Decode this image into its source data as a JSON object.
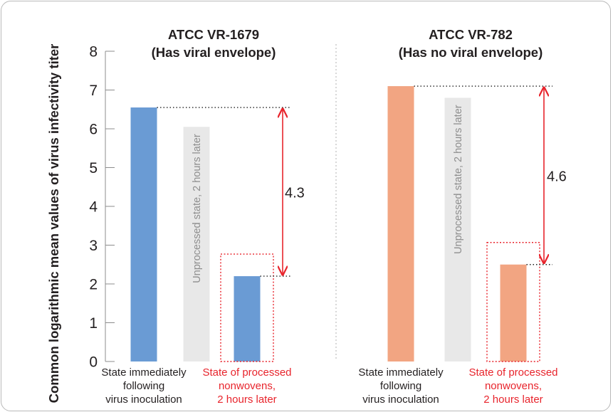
{
  "chart_data": {
    "type": "bar",
    "ylabel": "Common logarithmic mean values of virus infectivity titer",
    "ylim": [
      0,
      8
    ],
    "yticks": [
      "0",
      "1",
      "2",
      "3",
      "4",
      "5",
      "6",
      "7",
      "8"
    ],
    "grid": false,
    "colors": {
      "envelope": "#6a9bd4",
      "no_envelope": "#f2a582",
      "unprocessed": "#e8e8e8",
      "arrow": "#e8242c",
      "highlight_box": "#e8242c",
      "axis": "#8c8c8c",
      "text": "#231f20"
    },
    "panels": [
      {
        "title_line1": "ATCC VR-1679",
        "title_line2": "(Has viral envelope)",
        "categories": [
          {
            "lines": [
              "State immediately",
              "following",
              "virus inoculation"
            ],
            "highlight": false
          },
          {
            "lines": [],
            "highlight": false
          },
          {
            "lines": [
              "State of processed",
              "nonwovens,",
              "2 hours later"
            ],
            "highlight": true
          }
        ],
        "values": [
          6.55,
          6.05,
          2.2
        ],
        "bar_label": "Unprocessed state, 2 hours later",
        "difference_label": "4.3"
      },
      {
        "title_line1": "ATCC VR-782",
        "title_line2": "(Has no viral envelope)",
        "categories": [
          {
            "lines": [
              "State immediately",
              "following",
              "virus inoculation"
            ],
            "highlight": false
          },
          {
            "lines": [],
            "highlight": false
          },
          {
            "lines": [
              "State of processed",
              "nonwovens,",
              "2 hours later"
            ],
            "highlight": true
          }
        ],
        "values": [
          7.1,
          6.8,
          2.5
        ],
        "bar_label": "Unprocessed state, 2 hours later",
        "difference_label": "4.6"
      }
    ]
  }
}
